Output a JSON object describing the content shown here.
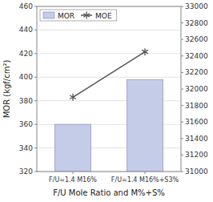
{
  "chart_data": {
    "type": "bar",
    "categories": [
      "F/U=1.4 M16%",
      "F/U=1.4 M16%+S3%"
    ],
    "series": [
      {
        "name": "MOR",
        "type": "bar",
        "color": "#c5cce8",
        "values": [
          360,
          398
        ]
      },
      {
        "name": "MOE",
        "type": "line",
        "axis": "y2",
        "color": "#555555",
        "marker": "asterisk",
        "values": [
          31900,
          32450
        ]
      }
    ],
    "xlabel": "F/U Mole Ratio and M%+S%",
    "ylabel": "MOR (kgf/cm²)",
    "ylim": [
      320,
      460
    ],
    "yticks": [
      320,
      340,
      360,
      380,
      400,
      420,
      440,
      460
    ],
    "y2lim": [
      31000,
      33000
    ],
    "y2ticks": [
      31000,
      31200,
      31400,
      31600,
      31800,
      32000,
      32200,
      32400,
      32600,
      32800,
      33000
    ],
    "grid": true,
    "legend": "upper left"
  }
}
